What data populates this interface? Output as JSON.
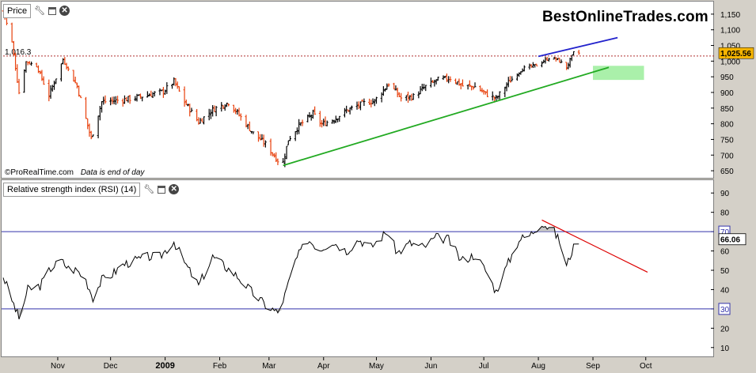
{
  "price_panel": {
    "title": "Price",
    "watermark": "BestOnlineTrades.com",
    "credit": "©ProRealTime.com",
    "credit_note": "Data is end of day",
    "ref_label": "1,016.3",
    "last_label": "1,025.56",
    "icons": [
      "wrench-icon",
      "window-icon",
      "close-icon"
    ]
  },
  "rsi_panel": {
    "title": "Relative strength index (RSI) (14)",
    "last_label": "66.06",
    "icons": [
      "wrench-icon",
      "window-icon",
      "close-icon"
    ]
  },
  "colors": {
    "up_bar": "#000000",
    "down_bar": "#e8400c",
    "support_line": "#22aa22",
    "resistance_line": "#2222cc",
    "rsi_trend": "#dd0000",
    "rsi_line": "#000000",
    "rsi_level": "#3333aa",
    "target_box": "#aaf0aa",
    "last_price_bg": "#f5b400"
  },
  "chart_data": [
    {
      "type": "bar",
      "subtype": "ohlc",
      "x_axis": {
        "labels": [
          "Nov",
          "Dec",
          "2009",
          "Feb",
          "Mar",
          "Apr",
          "May",
          "Jun",
          "Jul",
          "Aug",
          "Sep",
          "Oct"
        ],
        "range": [
          "2008-10-01",
          "2009-10-20"
        ]
      },
      "y_axis": {
        "ticks": [
          "650",
          "700",
          "750",
          "800",
          "850",
          "900",
          "950",
          "1,000",
          "1,050",
          "1,100",
          "1,150"
        ],
        "range": [
          630,
          1180
        ]
      },
      "reference_line": 1016.3,
      "last_value": 1025.56,
      "closes": [
        {
          "date": "2008-10-01",
          "value": 1160
        },
        {
          "date": "2008-10-06",
          "value": 1060
        },
        {
          "date": "2008-10-10",
          "value": 900
        },
        {
          "date": "2008-10-14",
          "value": 998
        },
        {
          "date": "2008-10-20",
          "value": 985
        },
        {
          "date": "2008-10-27",
          "value": 890
        },
        {
          "date": "2008-11-04",
          "value": 1005
        },
        {
          "date": "2008-11-12",
          "value": 920
        },
        {
          "date": "2008-11-20",
          "value": 752
        },
        {
          "date": "2008-11-26",
          "value": 870
        },
        {
          "date": "2008-12-05",
          "value": 875
        },
        {
          "date": "2008-12-12",
          "value": 880
        },
        {
          "date": "2008-12-19",
          "value": 888
        },
        {
          "date": "2008-12-31",
          "value": 903
        },
        {
          "date": "2009-01-06",
          "value": 935
        },
        {
          "date": "2009-01-12",
          "value": 870
        },
        {
          "date": "2009-01-20",
          "value": 805
        },
        {
          "date": "2009-01-28",
          "value": 845
        },
        {
          "date": "2009-02-06",
          "value": 868
        },
        {
          "date": "2009-02-11",
          "value": 835
        },
        {
          "date": "2009-02-20",
          "value": 770
        },
        {
          "date": "2009-02-27",
          "value": 735
        },
        {
          "date": "2009-03-06",
          "value": 683
        },
        {
          "date": "2009-03-09",
          "value": 676
        },
        {
          "date": "2009-03-12",
          "value": 750
        },
        {
          "date": "2009-03-18",
          "value": 794
        },
        {
          "date": "2009-03-26",
          "value": 832
        },
        {
          "date": "2009-03-31",
          "value": 798
        },
        {
          "date": "2009-04-07",
          "value": 815
        },
        {
          "date": "2009-04-14",
          "value": 842
        },
        {
          "date": "2009-04-24",
          "value": 866
        },
        {
          "date": "2009-04-30",
          "value": 873
        },
        {
          "date": "2009-05-08",
          "value": 929
        },
        {
          "date": "2009-05-15",
          "value": 882
        },
        {
          "date": "2009-05-22",
          "value": 887
        },
        {
          "date": "2009-05-29",
          "value": 919
        },
        {
          "date": "2009-06-05",
          "value": 940
        },
        {
          "date": "2009-06-12",
          "value": 946
        },
        {
          "date": "2009-06-19",
          "value": 921
        },
        {
          "date": "2009-06-26",
          "value": 918
        },
        {
          "date": "2009-07-02",
          "value": 896
        },
        {
          "date": "2009-07-08",
          "value": 880
        },
        {
          "date": "2009-07-15",
          "value": 932
        },
        {
          "date": "2009-07-23",
          "value": 976
        },
        {
          "date": "2009-07-31",
          "value": 987
        },
        {
          "date": "2009-08-07",
          "value": 1010
        },
        {
          "date": "2009-08-12",
          "value": 1005
        },
        {
          "date": "2009-08-17",
          "value": 979
        },
        {
          "date": "2009-08-21",
          "value": 1026
        },
        {
          "date": "2009-08-24",
          "value": 1025.56
        }
      ],
      "trendlines": [
        {
          "name": "support",
          "from": {
            "date": "2009-03-09",
            "value": 667
          },
          "to": {
            "date": "2009-09-10",
            "value": 980
          }
        },
        {
          "name": "resistance",
          "from": {
            "date": "2009-08-01",
            "value": 1015
          },
          "to": {
            "date": "2009-09-15",
            "value": 1075
          }
        }
      ],
      "target_zone": {
        "from": "2009-09-01",
        "to": "2009-09-30",
        "low": 940,
        "high": 985
      }
    },
    {
      "type": "line",
      "series": [
        {
          "name": "Relative strength index (RSI) (14)",
          "points": [
            {
              "date": "2008-10-01",
              "value": 47
            },
            {
              "date": "2008-10-05",
              "value": 37
            },
            {
              "date": "2008-10-10",
              "value": 25
            },
            {
              "date": "2008-10-15",
              "value": 40
            },
            {
              "date": "2008-10-22",
              "value": 42
            },
            {
              "date": "2008-10-28",
              "value": 51
            },
            {
              "date": "2008-11-03",
              "value": 55
            },
            {
              "date": "2008-11-07",
              "value": 51
            },
            {
              "date": "2008-11-12",
              "value": 50
            },
            {
              "date": "2008-11-17",
              "value": 45
            },
            {
              "date": "2008-11-21",
              "value": 36
            },
            {
              "date": "2008-11-26",
              "value": 45
            },
            {
              "date": "2008-12-02",
              "value": 48
            },
            {
              "date": "2008-12-08",
              "value": 53
            },
            {
              "date": "2008-12-15",
              "value": 55
            },
            {
              "date": "2008-12-22",
              "value": 57
            },
            {
              "date": "2008-12-29",
              "value": 57
            },
            {
              "date": "2009-01-06",
              "value": 65
            },
            {
              "date": "2009-01-12",
              "value": 54
            },
            {
              "date": "2009-01-20",
              "value": 42
            },
            {
              "date": "2009-01-28",
              "value": 57
            },
            {
              "date": "2009-02-04",
              "value": 52
            },
            {
              "date": "2009-02-11",
              "value": 47
            },
            {
              "date": "2009-02-20",
              "value": 38
            },
            {
              "date": "2009-02-27",
              "value": 32
            },
            {
              "date": "2009-03-06",
              "value": 28
            },
            {
              "date": "2009-03-10",
              "value": 37
            },
            {
              "date": "2009-03-16",
              "value": 55
            },
            {
              "date": "2009-03-23",
              "value": 66
            },
            {
              "date": "2009-03-30",
              "value": 61
            },
            {
              "date": "2009-04-06",
              "value": 65
            },
            {
              "date": "2009-04-14",
              "value": 60
            },
            {
              "date": "2009-04-21",
              "value": 66
            },
            {
              "date": "2009-04-28",
              "value": 62
            },
            {
              "date": "2009-05-07",
              "value": 70
            },
            {
              "date": "2009-05-13",
              "value": 59
            },
            {
              "date": "2009-05-20",
              "value": 64
            },
            {
              "date": "2009-05-28",
              "value": 62
            },
            {
              "date": "2009-06-04",
              "value": 67
            },
            {
              "date": "2009-06-11",
              "value": 66
            },
            {
              "date": "2009-06-18",
              "value": 55
            },
            {
              "date": "2009-06-26",
              "value": 58
            },
            {
              "date": "2009-07-02",
              "value": 50
            },
            {
              "date": "2009-07-08",
              "value": 39
            },
            {
              "date": "2009-07-14",
              "value": 52
            },
            {
              "date": "2009-07-21",
              "value": 66
            },
            {
              "date": "2009-07-27",
              "value": 68
            },
            {
              "date": "2009-08-03",
              "value": 75
            },
            {
              "date": "2009-08-07",
              "value": 72
            },
            {
              "date": "2009-08-10",
              "value": 70
            },
            {
              "date": "2009-08-13",
              "value": 65
            },
            {
              "date": "2009-08-17",
              "value": 52
            },
            {
              "date": "2009-08-20",
              "value": 60
            },
            {
              "date": "2009-08-24",
              "value": 66
            }
          ]
        }
      ],
      "x_axis": {
        "range": [
          "2008-10-01",
          "2009-10-20"
        ]
      },
      "y_axis": {
        "ticks": [
          "10",
          "20",
          "30",
          "40",
          "50",
          "60",
          "70",
          "80",
          "90"
        ],
        "range": [
          5,
          95
        ]
      },
      "levels": [
        {
          "value": 70,
          "label": "70"
        },
        {
          "value": 30,
          "label": "30"
        }
      ],
      "last_value": 66.06,
      "trendlines": [
        {
          "name": "rsi-downtrend",
          "from": {
            "date": "2009-08-03",
            "value": 76
          },
          "to": {
            "date": "2009-10-02",
            "value": 49
          }
        }
      ]
    }
  ]
}
